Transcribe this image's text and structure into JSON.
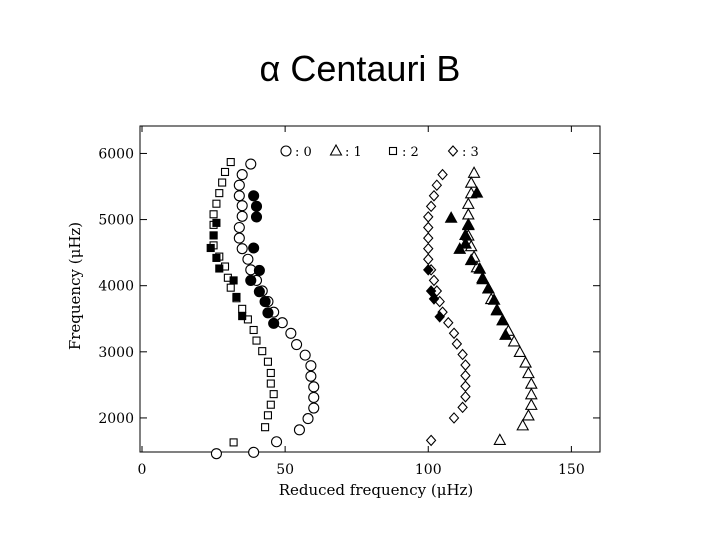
{
  "slide": {
    "title": "α Centauri B"
  },
  "chart_data": {
    "type": "scatter",
    "xlabel": "Reduced frequency (μHz)",
    "ylabel": "Frequency (μHz)",
    "xlim": [
      0,
      160
    ],
    "ylim": [
      1500,
      6400
    ],
    "x_ticks": [
      0,
      50,
      100,
      150
    ],
    "x_tick_labels": [
      "0",
      "50",
      "100",
      "150"
    ],
    "y_ticks": [
      2000,
      3000,
      4000,
      5000,
      6000
    ],
    "y_tick_labels": [
      "2000",
      "3000",
      "4000",
      "5000",
      "6000"
    ],
    "grid": false,
    "legend": {
      "placement": "top",
      "entries": [
        {
          "marker": "circle",
          "label": ": 0"
        },
        {
          "marker": "triangle",
          "label": ": 1"
        },
        {
          "marker": "square",
          "label": ": 2"
        },
        {
          "marker": "diamond",
          "label": ": 3"
        }
      ]
    },
    "series": [
      {
        "marker": "circle",
        "fill": "open",
        "points": [
          [
            38,
            5840
          ],
          [
            35,
            5680
          ],
          [
            34,
            5520
          ],
          [
            34,
            5360
          ],
          [
            35,
            5210
          ],
          [
            35,
            5050
          ],
          [
            34,
            4880
          ],
          [
            34,
            4720
          ],
          [
            35,
            4560
          ],
          [
            37,
            4400
          ],
          [
            38,
            4240
          ],
          [
            40,
            4080
          ],
          [
            42,
            3920
          ],
          [
            44,
            3760
          ],
          [
            46,
            3600
          ],
          [
            49,
            3440
          ],
          [
            52,
            3280
          ],
          [
            54,
            3110
          ],
          [
            57,
            2950
          ],
          [
            59,
            2790
          ],
          [
            59,
            2630
          ],
          [
            60,
            2470
          ],
          [
            60,
            2310
          ],
          [
            60,
            2150
          ],
          [
            58,
            1990
          ],
          [
            55,
            1820
          ],
          [
            47,
            1640
          ],
          [
            39,
            1480
          ],
          [
            26,
            1460
          ]
        ]
      },
      {
        "marker": "circle",
        "fill": "filled",
        "points": [
          [
            39,
            5360
          ],
          [
            40,
            5200
          ],
          [
            40,
            5040
          ],
          [
            39,
            4570
          ],
          [
            41,
            4230
          ],
          [
            38,
            4080
          ],
          [
            41,
            3910
          ],
          [
            43,
            3760
          ],
          [
            44,
            3590
          ],
          [
            46,
            3430
          ]
        ]
      },
      {
        "marker": "square",
        "fill": "open",
        "points": [
          [
            31,
            5870
          ],
          [
            29,
            5720
          ],
          [
            28,
            5560
          ],
          [
            27,
            5400
          ],
          [
            26,
            5240
          ],
          [
            25,
            5080
          ],
          [
            25,
            4920
          ],
          [
            25,
            4760
          ],
          [
            25,
            4610
          ],
          [
            27,
            4440
          ],
          [
            29,
            4290
          ],
          [
            30,
            4120
          ],
          [
            31,
            3970
          ],
          [
            33,
            3810
          ],
          [
            35,
            3650
          ],
          [
            37,
            3490
          ],
          [
            39,
            3330
          ],
          [
            40,
            3170
          ],
          [
            42,
            3010
          ],
          [
            44,
            2850
          ],
          [
            45,
            2680
          ],
          [
            45,
            2520
          ],
          [
            46,
            2360
          ],
          [
            45,
            2200
          ],
          [
            44,
            2040
          ],
          [
            43,
            1860
          ],
          [
            32,
            1630
          ]
        ]
      },
      {
        "marker": "square",
        "fill": "filled",
        "points": [
          [
            26,
            4950
          ],
          [
            25,
            4760
          ],
          [
            24,
            4570
          ],
          [
            26,
            4420
          ],
          [
            27,
            4260
          ],
          [
            32,
            4080
          ],
          [
            33,
            3830
          ],
          [
            35,
            3540
          ]
        ]
      },
      {
        "marker": "diamond",
        "fill": "open",
        "points": [
          [
            105,
            5680
          ],
          [
            103,
            5520
          ],
          [
            102,
            5360
          ],
          [
            101,
            5200
          ],
          [
            100,
            5040
          ],
          [
            100,
            4880
          ],
          [
            100,
            4720
          ],
          [
            100,
            4560
          ],
          [
            100,
            4400
          ],
          [
            101,
            4240
          ],
          [
            102,
            4080
          ],
          [
            103,
            3920
          ],
          [
            104,
            3760
          ],
          [
            105,
            3600
          ],
          [
            107,
            3440
          ],
          [
            109,
            3280
          ],
          [
            110,
            3120
          ],
          [
            112,
            2960
          ],
          [
            113,
            2800
          ],
          [
            113,
            2640
          ],
          [
            113,
            2480
          ],
          [
            113,
            2320
          ],
          [
            112,
            2160
          ],
          [
            109,
            2000
          ],
          [
            101,
            1660
          ]
        ]
      },
      {
        "marker": "diamond",
        "fill": "filled",
        "points": [
          [
            100,
            4240
          ],
          [
            101,
            3920
          ],
          [
            102,
            3800
          ],
          [
            104,
            3530
          ]
        ]
      },
      {
        "marker": "triangle",
        "fill": "open",
        "points": [
          [
            116,
            5700
          ],
          [
            115,
            5550
          ],
          [
            115,
            5390
          ],
          [
            114,
            5230
          ],
          [
            114,
            5070
          ],
          [
            114,
            4910
          ],
          [
            114,
            4750
          ],
          [
            115,
            4590
          ],
          [
            116,
            4430
          ],
          [
            117,
            4270
          ],
          [
            119,
            4110
          ],
          [
            121,
            3950
          ],
          [
            122,
            3790
          ],
          [
            124,
            3630
          ],
          [
            126,
            3470
          ],
          [
            128,
            3310
          ],
          [
            130,
            3150
          ],
          [
            132,
            2990
          ],
          [
            134,
            2830
          ],
          [
            135,
            2670
          ],
          [
            136,
            2510
          ],
          [
            136,
            2350
          ],
          [
            136,
            2190
          ],
          [
            135,
            2030
          ],
          [
            133,
            1880
          ],
          [
            125,
            1660
          ]
        ]
      },
      {
        "marker": "triangle",
        "fill": "filled",
        "points": [
          [
            117,
            5400
          ],
          [
            108,
            5020
          ],
          [
            114,
            4920
          ],
          [
            113,
            4760
          ],
          [
            113,
            4630
          ],
          [
            111,
            4550
          ],
          [
            115,
            4380
          ],
          [
            118,
            4250
          ],
          [
            119,
            4090
          ],
          [
            121,
            3950
          ],
          [
            123,
            3780
          ],
          [
            124,
            3620
          ],
          [
            126,
            3470
          ],
          [
            127,
            3250
          ]
        ]
      }
    ]
  }
}
